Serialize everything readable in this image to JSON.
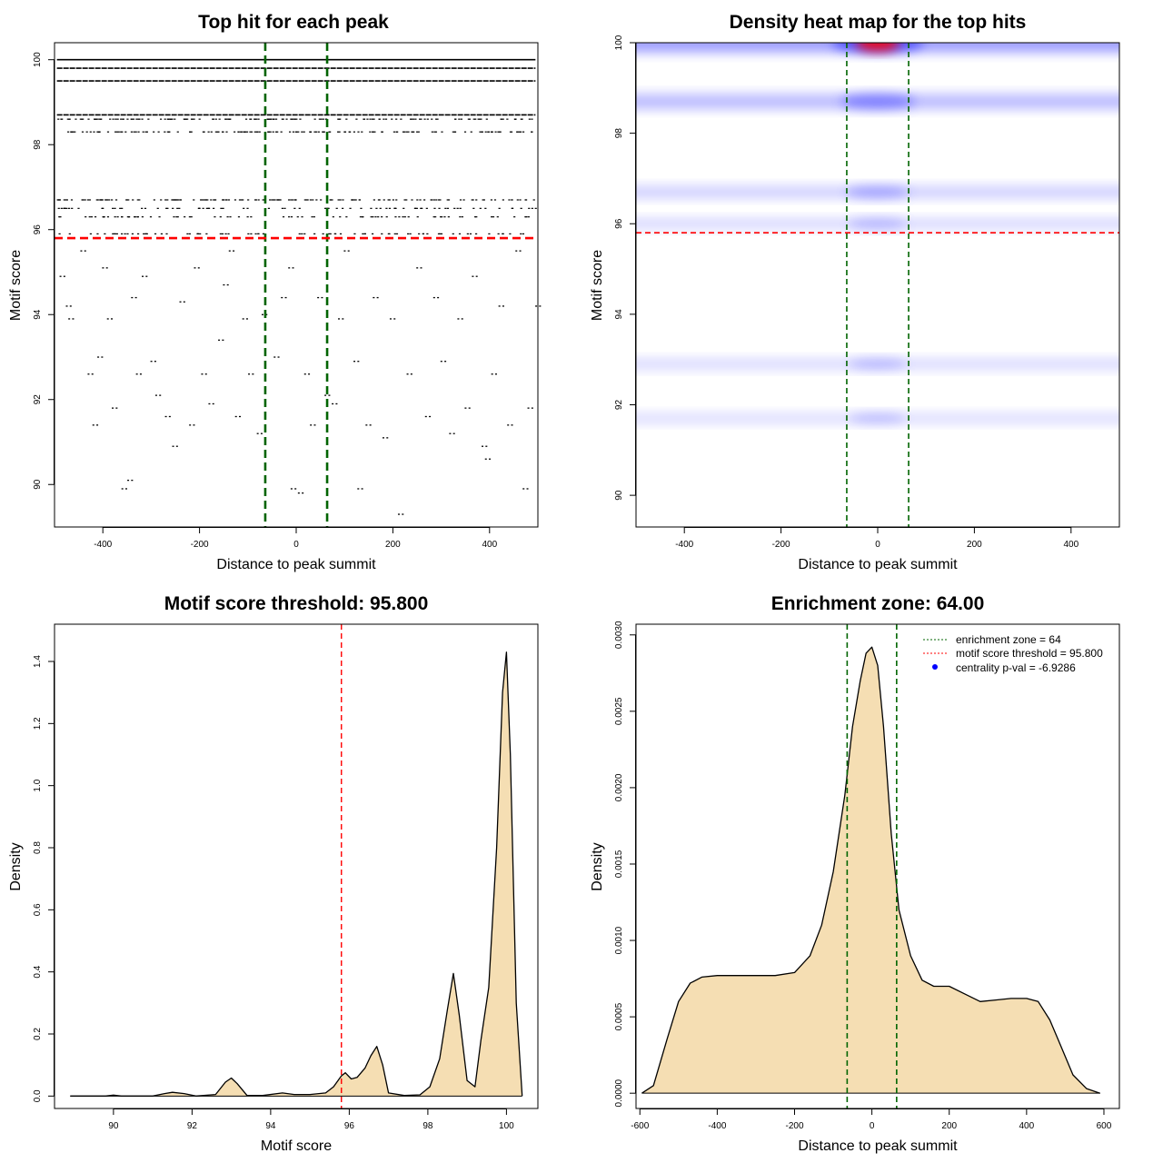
{
  "chart_data": [
    {
      "type": "scatter",
      "title": "Top hit for each peak",
      "xlabel": "Distance to peak summit",
      "ylabel": "Motif score",
      "xlim": [
        -500,
        500
      ],
      "ylim": [
        89,
        100.4
      ],
      "x_ticks": [
        -400,
        -200,
        0,
        200,
        400
      ],
      "y_ticks": [
        90,
        92,
        94,
        96,
        98,
        100
      ],
      "dense_rows": [
        100.0,
        99.8,
        99.5,
        98.7,
        98.6,
        98.3,
        96.7,
        96.5,
        96.3,
        95.9
      ],
      "sparse_points": [
        {
          "x": -488,
          "y": 94.9
        },
        {
          "x": -475,
          "y": 94.2
        },
        {
          "x": -470,
          "y": 93.9
        },
        {
          "x": -445,
          "y": 95.5
        },
        {
          "x": -430,
          "y": 92.6
        },
        {
          "x": -420,
          "y": 91.4
        },
        {
          "x": -410,
          "y": 93.0
        },
        {
          "x": -400,
          "y": 95.1
        },
        {
          "x": -390,
          "y": 93.9
        },
        {
          "x": -380,
          "y": 91.8
        },
        {
          "x": -360,
          "y": 89.9
        },
        {
          "x": -348,
          "y": 90.1
        },
        {
          "x": -340,
          "y": 94.4
        },
        {
          "x": -330,
          "y": 92.6
        },
        {
          "x": -318,
          "y": 94.9
        },
        {
          "x": -300,
          "y": 92.9
        },
        {
          "x": -290,
          "y": 92.1
        },
        {
          "x": -270,
          "y": 91.6
        },
        {
          "x": -255,
          "y": 90.9
        },
        {
          "x": -240,
          "y": 94.3
        },
        {
          "x": -220,
          "y": 91.4
        },
        {
          "x": -210,
          "y": 95.1
        },
        {
          "x": -195,
          "y": 92.6
        },
        {
          "x": -180,
          "y": 91.9
        },
        {
          "x": -160,
          "y": 93.4
        },
        {
          "x": -150,
          "y": 94.7
        },
        {
          "x": -138,
          "y": 95.5
        },
        {
          "x": -125,
          "y": 91.6
        },
        {
          "x": -110,
          "y": 93.9
        },
        {
          "x": -98,
          "y": 92.6
        },
        {
          "x": -80,
          "y": 91.2
        },
        {
          "x": -70,
          "y": 94.0
        },
        {
          "x": -45,
          "y": 93.0
        },
        {
          "x": -30,
          "y": 94.4
        },
        {
          "x": -15,
          "y": 95.1
        },
        {
          "x": -10,
          "y": 89.9
        },
        {
          "x": 5,
          "y": 89.8
        },
        {
          "x": 18,
          "y": 92.6
        },
        {
          "x": 30,
          "y": 91.4
        },
        {
          "x": 45,
          "y": 94.4
        },
        {
          "x": 60,
          "y": 92.1
        },
        {
          "x": 75,
          "y": 91.9
        },
        {
          "x": 88,
          "y": 93.9
        },
        {
          "x": 100,
          "y": 95.5
        },
        {
          "x": 120,
          "y": 92.9
        },
        {
          "x": 128,
          "y": 89.9
        },
        {
          "x": 145,
          "y": 91.4
        },
        {
          "x": 160,
          "y": 94.4
        },
        {
          "x": 180,
          "y": 91.1
        },
        {
          "x": 195,
          "y": 93.9
        },
        {
          "x": 212,
          "y": 89.3
        },
        {
          "x": 230,
          "y": 92.6
        },
        {
          "x": 250,
          "y": 95.1
        },
        {
          "x": 268,
          "y": 91.6
        },
        {
          "x": 285,
          "y": 94.4
        },
        {
          "x": 300,
          "y": 92.9
        },
        {
          "x": 318,
          "y": 91.2
        },
        {
          "x": 335,
          "y": 93.9
        },
        {
          "x": 350,
          "y": 91.8
        },
        {
          "x": 365,
          "y": 94.9
        },
        {
          "x": 385,
          "y": 90.9
        },
        {
          "x": 392,
          "y": 90.6
        },
        {
          "x": 405,
          "y": 92.6
        },
        {
          "x": 420,
          "y": 94.2
        },
        {
          "x": 438,
          "y": 91.4
        },
        {
          "x": 455,
          "y": 95.5
        },
        {
          "x": 470,
          "y": 89.9
        },
        {
          "x": 480,
          "y": 91.8
        },
        {
          "x": 496,
          "y": 94.2
        }
      ],
      "vlines": [
        -64,
        64
      ],
      "hline": 95.8,
      "colors": {
        "points": "#000000",
        "vline": "#006400",
        "hline": "#ff0000"
      }
    },
    {
      "type": "heatmap",
      "title": "Density heat map for the top hits",
      "xlabel": "Distance to peak summit",
      "ylabel": "Motif score",
      "xlim": [
        -500,
        500
      ],
      "ylim": [
        89.3,
        100
      ],
      "x_ticks": [
        -400,
        -200,
        0,
        200,
        400
      ],
      "y_ticks": [
        90,
        92,
        94,
        96,
        98,
        100
      ],
      "bands": [
        {
          "y": 100.0,
          "weight": 1.0
        },
        {
          "y": 98.7,
          "weight": 0.55
        },
        {
          "y": 96.7,
          "weight": 0.25
        },
        {
          "y": 96.0,
          "weight": 0.12
        },
        {
          "y": 92.9,
          "weight": 0.1
        },
        {
          "y": 91.7,
          "weight": 0.05
        }
      ],
      "vlines": [
        -64,
        64
      ],
      "hline": 95.8,
      "colors": {
        "low": "#ffffff",
        "mid": "#0000ff",
        "high": "#ff0000",
        "vline": "#006400",
        "hline": "#ff0000"
      }
    },
    {
      "type": "area",
      "title": "Motif score threshold: 95.800",
      "xlabel": "Motif score",
      "ylabel": "Density",
      "xlim": [
        88.5,
        100.8
      ],
      "ylim": [
        -0.04,
        1.52
      ],
      "x_ticks": [
        90,
        92,
        94,
        96,
        98,
        100
      ],
      "y_ticks": [
        0.0,
        0.2,
        0.4,
        0.6,
        0.8,
        1.0,
        1.2,
        1.4
      ],
      "y_tick_labels": [
        "0.0",
        "0.2",
        "0.4",
        "0.6",
        "0.8",
        "1.0",
        "1.2",
        "1.4"
      ],
      "x": [
        88.9,
        89.8,
        90.0,
        90.2,
        91.0,
        91.3,
        91.5,
        91.8,
        92.1,
        92.6,
        92.85,
        93.0,
        93.15,
        93.4,
        93.8,
        94.3,
        94.6,
        95.0,
        95.4,
        95.6,
        95.8,
        95.9,
        96.05,
        96.2,
        96.4,
        96.55,
        96.7,
        96.85,
        97.0,
        97.4,
        97.8,
        98.05,
        98.3,
        98.5,
        98.65,
        98.8,
        99.0,
        99.2,
        99.35,
        99.55,
        99.75,
        99.9,
        100.0,
        100.1,
        100.25,
        100.4
      ],
      "y": [
        0.0,
        0.0,
        0.003,
        0.0,
        0.0,
        0.008,
        0.012,
        0.008,
        0.0,
        0.005,
        0.045,
        0.058,
        0.04,
        0.002,
        0.002,
        0.01,
        0.005,
        0.005,
        0.01,
        0.03,
        0.065,
        0.075,
        0.055,
        0.06,
        0.09,
        0.13,
        0.16,
        0.1,
        0.01,
        0.002,
        0.004,
        0.03,
        0.12,
        0.28,
        0.395,
        0.26,
        0.05,
        0.03,
        0.18,
        0.35,
        0.8,
        1.3,
        1.43,
        1.1,
        0.3,
        0.0
      ],
      "vline": 95.8,
      "colors": {
        "fill": "#f5deb3",
        "line": "#000000",
        "vline": "#ff0000"
      }
    },
    {
      "type": "area",
      "title": "Enrichment zone: 64.00",
      "xlabel": "Distance to peak summit",
      "ylabel": "Density",
      "xlim": [
        -610,
        640
      ],
      "ylim": [
        -0.0001,
        0.00307
      ],
      "x_ticks": [
        -600,
        -400,
        -200,
        0,
        200,
        400,
        600
      ],
      "y_ticks": [
        0.0,
        0.0005,
        0.001,
        0.0015,
        0.002,
        0.0025,
        0.003
      ],
      "y_tick_labels": [
        "0.0000",
        "0.0005",
        "0.0010",
        "0.0015",
        "0.0020",
        "0.0025",
        "0.0030"
      ],
      "x": [
        -595,
        -565,
        -530,
        -500,
        -470,
        -440,
        -400,
        -350,
        -300,
        -250,
        -200,
        -160,
        -130,
        -100,
        -70,
        -50,
        -30,
        -15,
        0,
        15,
        30,
        50,
        70,
        100,
        130,
        160,
        200,
        240,
        280,
        320,
        360,
        400,
        430,
        460,
        490,
        520,
        555,
        590
      ],
      "y": [
        0.0,
        5e-05,
        0.00035,
        0.0006,
        0.00072,
        0.00076,
        0.00077,
        0.00077,
        0.00077,
        0.00077,
        0.00079,
        0.0009,
        0.0011,
        0.00145,
        0.00195,
        0.0024,
        0.0027,
        0.00288,
        0.00292,
        0.0028,
        0.0024,
        0.0017,
        0.0012,
        0.0009,
        0.00074,
        0.0007,
        0.0007,
        0.00065,
        0.0006,
        0.00061,
        0.00062,
        0.00062,
        0.0006,
        0.00048,
        0.0003,
        0.00012,
        3e-05,
        0.0
      ],
      "vlines": [
        -64,
        64
      ],
      "legend": {
        "position": "top-right",
        "entries": [
          "enrichment zone = 64",
          "motif score threshold = 95.800",
          "centrality p-val = -6.9286"
        ]
      },
      "colors": {
        "fill": "#f5deb3",
        "line": "#000000",
        "vline": "#006400",
        "hline": "#ff0000",
        "point": "#0000ff"
      }
    }
  ]
}
